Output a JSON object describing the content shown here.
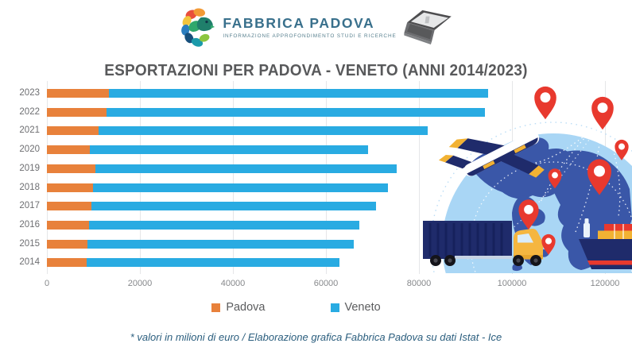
{
  "header": {
    "brand": "FABBRICA PADOVA",
    "brand_subtitle": "INFORMAZIONE APPROFONDIMENTO STUDI E RICERCHE"
  },
  "title": "ESPORTAZIONI PER PADOVA - VENETO (ANNI 2014/2023)",
  "footer": "* valori in milioni di euro / Elaborazione grafica Fabbrica Padova su dati Istat - Ice",
  "legend": [
    {
      "label": "Padova",
      "color": "#E8813B"
    },
    {
      "label": "Veneto",
      "color": "#29ABE2"
    }
  ],
  "colors": {
    "padova_orange": "#E8813B",
    "veneto_blue": "#29ABE2",
    "title_gray": "#58595B",
    "brand_teal": "#39708C",
    "footer_blue": "#2B5E7E",
    "pin_red": "#E8392E",
    "globe_light_blue": "#A9D6F5",
    "continent_blue": "#3A57A8",
    "navy": "#1F2B6B",
    "accent_yellow": "#F2B233"
  },
  "icons": [
    "fabbrica-padova-logo",
    "laptop-icon",
    "globe-icon",
    "airplane-icon",
    "truck-icon",
    "cargo-ship-icon",
    "location-pin-icon"
  ],
  "chart_data": {
    "type": "bar",
    "orientation": "horizontal",
    "stacked": true,
    "title": "ESPORTAZIONI PER PADOVA - VENETO (ANNI 2014/2023)",
    "unit": "milioni di euro",
    "categories": [
      "2023",
      "2022",
      "2021",
      "2020",
      "2019",
      "2018",
      "2017",
      "2016",
      "2015",
      "2014"
    ],
    "series": [
      {
        "name": "Padova",
        "color": "#E8813B",
        "values": [
          13400,
          12800,
          11100,
          9300,
          10400,
          9900,
          9500,
          9100,
          8700,
          8500
        ]
      },
      {
        "name": "Veneto",
        "color": "#29ABE2",
        "values": [
          81400,
          81400,
          70800,
          59700,
          64800,
          63400,
          61300,
          58100,
          57300,
          54400
        ]
      }
    ],
    "xlim": [
      0,
      120000
    ],
    "xticks": [
      0,
      20000,
      40000,
      60000,
      80000,
      100000,
      120000
    ],
    "grid": true,
    "legend_position": "bottom"
  }
}
